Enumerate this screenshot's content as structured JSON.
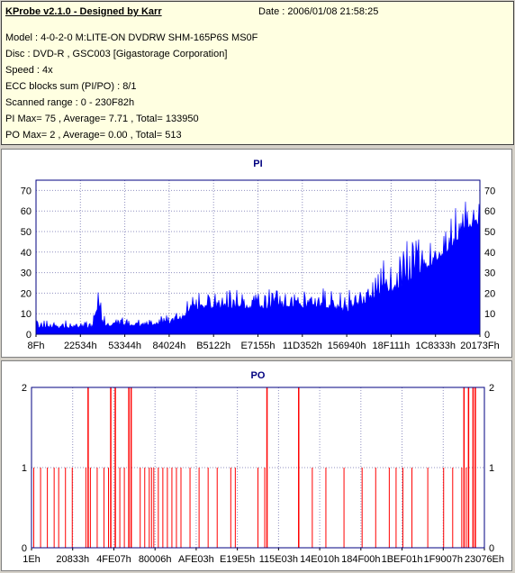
{
  "info": {
    "title": "KProbe v2.1.0 - Designed by Karr",
    "date": "Date : 2006/01/08 21:58:25",
    "model": "Model : 4-0-2-0 M:LITE-ON DVDRW SHM-165P6S MS0F",
    "disc": "Disc : DVD-R , GSC003 [Gigastorage Corporation]",
    "speed": "Speed : 4x",
    "ecc": "ECC blocks sum (PI/PO) : 8/1",
    "range": "Scanned range : 0 - 230F82h",
    "pi": "PI Max= 75 , Average= 7.71 , Total= 133950",
    "po": "PO Max= 2 , Average= 0.00 , Total= 513"
  },
  "colors": {
    "pi": "#0000ff",
    "po": "#ff0000",
    "grid": "#000080"
  },
  "chart_data": [
    {
      "type": "area",
      "title": "PI",
      "ylim": [
        0,
        75
      ],
      "yticks": [
        0,
        10,
        20,
        30,
        40,
        50,
        60,
        70
      ],
      "xtick_labels": [
        "8Fh",
        "22534h",
        "53344h",
        "84024h",
        "B5122h",
        "E7155h",
        "11D352h",
        "156940h",
        "18F111h",
        "1C8333h",
        "20173Fh"
      ],
      "grid": true,
      "series": [
        {
          "x_progress": [
            0,
            0.05,
            0.1,
            0.13,
            0.14,
            0.15,
            0.2,
            0.25,
            0.3,
            0.33,
            0.35,
            0.45,
            0.55,
            0.65,
            0.7,
            0.72,
            0.75,
            0.8,
            0.85,
            0.9,
            0.93,
            0.96,
            0.98,
            1.0
          ],
          "baseline": [
            3,
            3,
            3,
            3,
            14,
            4,
            4,
            4,
            5,
            7,
            12,
            12,
            12,
            13,
            10,
            13,
            16,
            20,
            26,
            35,
            40,
            48,
            52,
            50
          ],
          "peak": [
            7,
            6,
            6,
            8,
            28,
            9,
            8,
            8,
            9,
            12,
            20,
            20,
            21,
            22,
            18,
            23,
            28,
            35,
            43,
            52,
            56,
            62,
            72,
            65
          ]
        }
      ]
    },
    {
      "type": "bar",
      "title": "PO",
      "ylim": [
        0,
        2
      ],
      "yticks": [
        0,
        1,
        2
      ],
      "xtick_labels": [
        "1Eh",
        "20833h",
        "4FE07h",
        "80006h",
        "AFE03h",
        "E19E5h",
        "115E03h",
        "14E010h",
        "184F00h",
        "1BEF01h",
        "1F9007h",
        "23076Eh"
      ],
      "grid": true,
      "series": [
        {
          "spikes_value_1": [
            0.005,
            0.02,
            0.035,
            0.05,
            0.06,
            0.075,
            0.09,
            0.12,
            0.13,
            0.145,
            0.16,
            0.17,
            0.195,
            0.205,
            0.22,
            0.24,
            0.25,
            0.26,
            0.265,
            0.27,
            0.28,
            0.29,
            0.3,
            0.31,
            0.32,
            0.33,
            0.35,
            0.37,
            0.39,
            0.41,
            0.44,
            0.45,
            0.5,
            0.515,
            0.59,
            0.62,
            0.65,
            0.69,
            0.73,
            0.76,
            0.79,
            0.805,
            0.82,
            0.84,
            0.875,
            0.91,
            0.93,
            0.95,
            0.96,
            0.975
          ],
          "spikes_value_2": [
            0.125,
            0.175,
            0.185,
            0.215,
            0.22,
            0.52,
            0.59,
            0.955,
            0.965,
            0.975,
            0.98
          ]
        }
      ]
    }
  ]
}
